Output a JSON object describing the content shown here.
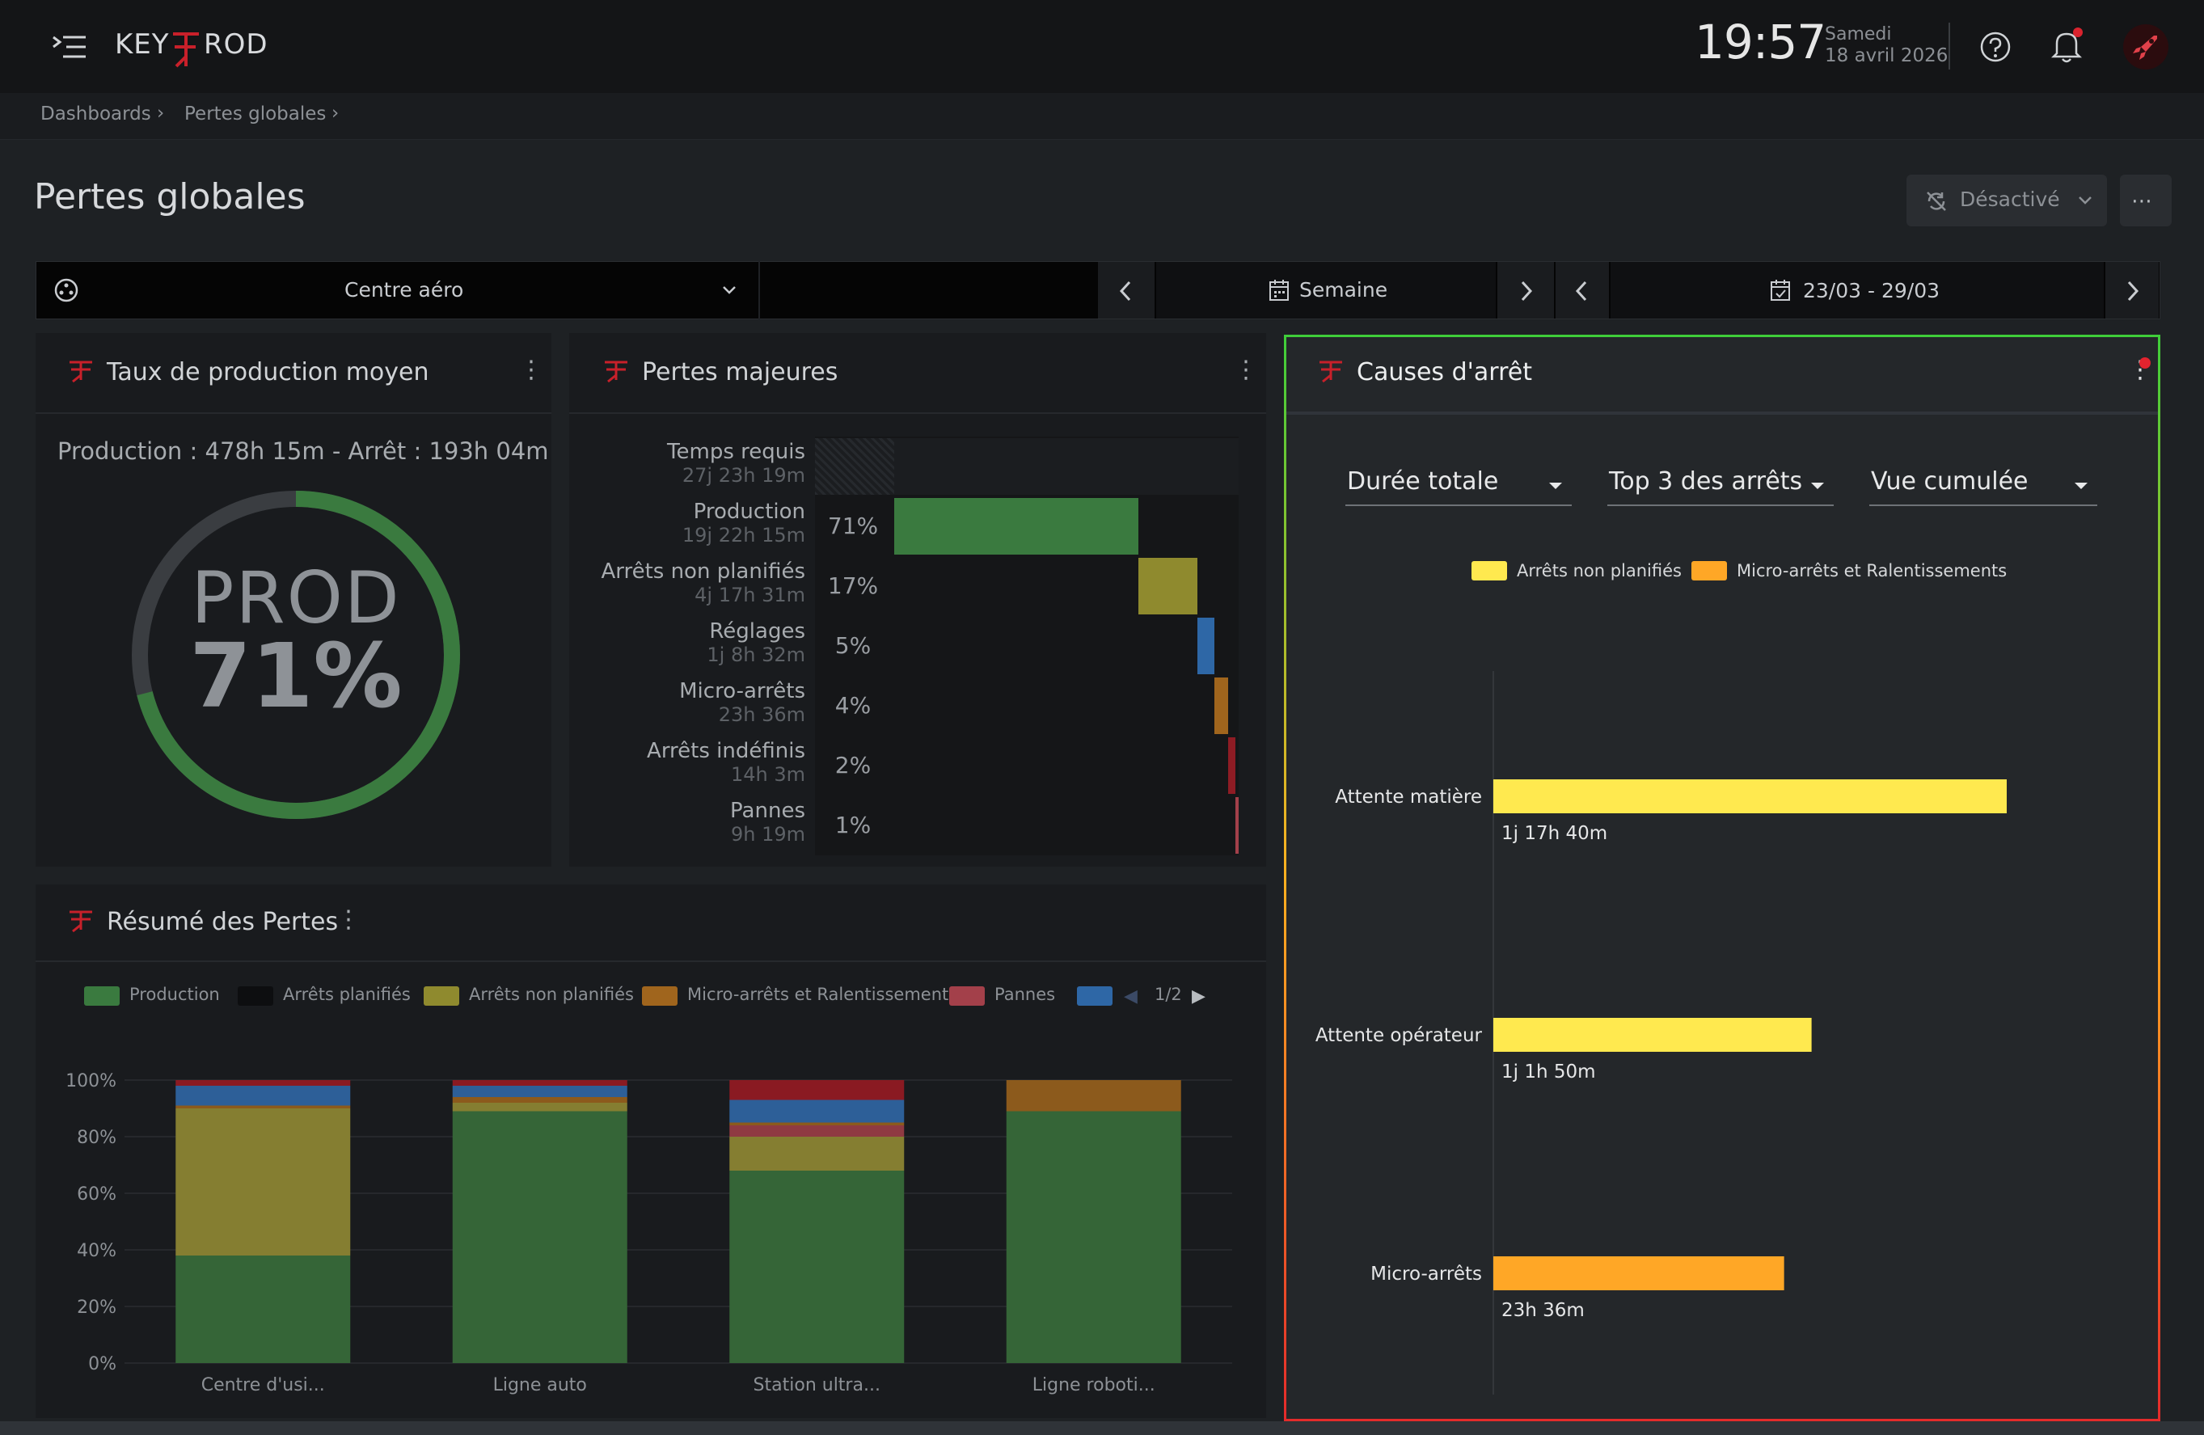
{
  "app": {
    "logo_text": "KEYPROD",
    "time": "19:57",
    "day": "Samedi",
    "date": "18 avril 2026"
  },
  "breadcrumb": [
    "Dashboards",
    "Pertes globales"
  ],
  "page": {
    "title": "Pertes globales",
    "auto_refresh_label": "Désactivé"
  },
  "filters": {
    "site": "Centre aéro",
    "period": "Semaine",
    "range": "23/03 - 29/03"
  },
  "widget_rate": {
    "title": "Taux de production moyen",
    "summary": "Production : 478h 15m - Arrêt : 193h 04m",
    "center_label": "PROD",
    "percent_text": "71%",
    "percent": 71
  },
  "widget_losses": {
    "title": "Pertes majeures",
    "rows": [
      {
        "label": "Temps requis",
        "duration": "27j 23h 19m",
        "pct": "",
        "color": "#2a2d31"
      },
      {
        "label": "Production",
        "duration": "19j 22h 15m",
        "pct": "71%",
        "color": "#3a7a3f"
      },
      {
        "label": "Arrêts non planifiés",
        "duration": "4j 17h 31m",
        "pct": "17%",
        "color": "#8f8a2e"
      },
      {
        "label": "Réglages",
        "duration": "1j 8h 32m",
        "pct": "5%",
        "color": "#2e67a6"
      },
      {
        "label": "Micro-arrêts",
        "duration": "23h 36m",
        "pct": "4%",
        "color": "#a0651d"
      },
      {
        "label": "Arrêts indéfinis",
        "duration": "14h 3m",
        "pct": "2%",
        "color": "#8e1c24"
      },
      {
        "label": "Pannes",
        "duration": "9h 19m",
        "pct": "1%",
        "color": "#a3404a"
      }
    ]
  },
  "widget_summary": {
    "title": "Résumé des Pertes",
    "legend": [
      {
        "name": "Production",
        "color": "#3a7a3f"
      },
      {
        "name": "Arrêts planifiés",
        "color": "#0d0e10"
      },
      {
        "name": "Arrêts non planifiés",
        "color": "#8f8a2e"
      },
      {
        "name": "Micro-arrêts et Ralentissements",
        "color": "#a0651d"
      },
      {
        "name": "Pannes",
        "color": "#a3404a"
      },
      {
        "name": "",
        "color": "#2e67a6"
      }
    ],
    "legend_page": "1/2"
  },
  "widget_causes": {
    "title": "Causes d'arrêt",
    "select_metric": "Durée totale",
    "select_top": "Top 3 des arrêts",
    "select_view": "Vue cumulée",
    "legend": [
      {
        "name": "Arrêts non planifiés",
        "color": "#ffe94f"
      },
      {
        "name": "Micro-arrêts et Ralentissements",
        "color": "#ffa726"
      }
    ],
    "bars_label_text": [
      "1j 17h 40m",
      "1j 1h 50m",
      "23h 36m"
    ]
  },
  "chart_data": [
    {
      "type": "bar",
      "title": "Résumé des Pertes",
      "categories": [
        "Centre d'usi...",
        "Ligne auto",
        "Station ultra...",
        "Ligne roboti..."
      ],
      "ylim": [
        0,
        100
      ],
      "yticks": [
        "0%",
        "20%",
        "40%",
        "60%",
        "80%",
        "100%"
      ],
      "stacked": true,
      "series": [
        {
          "name": "Production",
          "color": "#356537",
          "values": [
            38,
            89,
            68,
            89
          ]
        },
        {
          "name": "Arrêts non planifiés",
          "color": "#857e31",
          "values": [
            52,
            3,
            12,
            0
          ]
        },
        {
          "name": "Pannes",
          "color": "#8f3a42",
          "values": [
            0,
            0,
            4,
            0
          ]
        },
        {
          "name": "Micro-arrêts et Ralentissements",
          "color": "#8c5a1c",
          "values": [
            1,
            2,
            1,
            11
          ]
        },
        {
          "name": "",
          "color": "#2d5f98",
          "values": [
            7,
            4,
            8,
            0
          ]
        },
        {
          "name": "Arrêts indéfinis",
          "color": "#8a1a22",
          "values": [
            2,
            2,
            7,
            0
          ]
        }
      ]
    },
    {
      "type": "bar",
      "title": "Causes d'arrêt",
      "orientation": "horizontal",
      "categories": [
        "Attente matière",
        "Attente opérateur",
        "Micro-arrêts"
      ],
      "series": [
        {
          "name": "Arrêts non planifiés",
          "color": "#ffe94f",
          "values": [
            41.67,
            25.83,
            0
          ]
        },
        {
          "name": "Micro-arrêts et Ralentissements",
          "color": "#ffa726",
          "values": [
            0,
            0,
            23.6
          ]
        }
      ],
      "value_unit": "h"
    }
  ]
}
